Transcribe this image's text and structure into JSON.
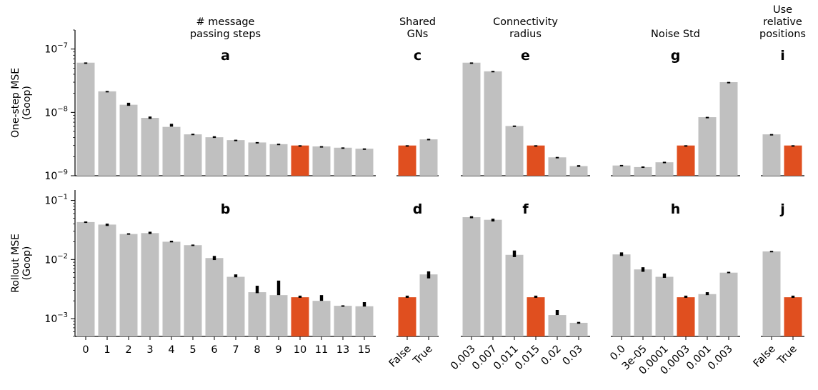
{
  "colors": {
    "bar": "#c0c0c0",
    "highlight": "#e04f1f",
    "error": "#000000"
  },
  "chart_data": {
    "type": "bar",
    "row_labels": [
      [
        "One-step MSE",
        "(Goop)"
      ],
      [
        "Rollout MSE",
        "(Goop)"
      ]
    ],
    "rows": [
      {
        "ylim": [
          1e-09,
          2e-07
        ],
        "yscale": "log",
        "ticks": [
          {
            "v": 1e-07,
            "base": "10",
            "exp": "−7"
          },
          {
            "v": 1e-08,
            "base": "10",
            "exp": "−8"
          },
          {
            "v": 1e-09,
            "base": "10",
            "exp": "−9"
          }
        ]
      },
      {
        "ylim": [
          0.0005,
          0.15
        ],
        "yscale": "log",
        "ticks": [
          {
            "v": 0.1,
            "base": "10",
            "exp": "−1"
          },
          {
            "v": 0.01,
            "base": "10",
            "exp": "−2"
          },
          {
            "v": 0.001,
            "base": "10",
            "exp": "−3"
          }
        ]
      }
    ],
    "columns": [
      {
        "title": [
          "# message",
          "passing steps"
        ],
        "rotate_ticks": false,
        "categories": [
          "0",
          "1",
          "2",
          "3",
          "4",
          "5",
          "6",
          "7",
          "8",
          "9",
          "10",
          "11",
          "13",
          "15"
        ],
        "highlight_index": 10,
        "panels": [
          {
            "letter": "a",
            "values": [
              6.1e-08,
              2.15e-08,
              1.32e-08,
              8.2e-09,
              5.9e-09,
              4.5e-09,
              4.05e-09,
              3.65e-09,
              3.35e-09,
              3.15e-09,
              3e-09,
              2.9e-09,
              2.77e-09,
              2.67e-09
            ],
            "errors": [
              [
                6.05e-08,
                6.15e-08
              ],
              [
                2.12e-08,
                2.18e-08
              ],
              [
                1.27e-08,
                1.42e-08
              ],
              [
                7.9e-09,
                8.6e-09
              ],
              [
                5.95e-09,
                6.6e-09
              ],
              [
                4.45e-09,
                4.6e-09
              ],
              [
                3.95e-09,
                4.2e-09
              ],
              [
                3.6e-09,
                3.7e-09
              ],
              [
                3.3e-09,
                3.4e-09
              ],
              [
                3.1e-09,
                3.2e-09
              ],
              [
                2.97e-09,
                3.03e-09
              ],
              [
                2.87e-09,
                2.93e-09
              ],
              [
                2.74e-09,
                2.8e-09
              ],
              [
                2.64e-09,
                2.7e-09
              ]
            ]
          },
          {
            "letter": "b",
            "values": [
              0.043,
              0.039,
              0.027,
              0.028,
              0.02,
              0.0175,
              0.0106,
              0.0051,
              0.0028,
              0.0025,
              0.0023,
              0.002,
              0.00165,
              0.00162
            ],
            "errors": [
              [
                0.042,
                0.044
              ],
              [
                0.037,
                0.0405
              ],
              [
                0.0265,
                0.0278
              ],
              [
                0.027,
                0.0295
              ],
              [
                0.0195,
                0.0208
              ],
              [
                0.0171,
                0.0179
              ],
              [
                0.0098,
                0.0115
              ],
              [
                0.005,
                0.0056
              ],
              [
                0.0027,
                0.0036
              ],
              [
                0.0025,
                0.0044
              ],
              [
                0.00225,
                0.00245
              ],
              [
                0.002,
                0.0025
              ],
              [
                0.00162,
                0.00168
              ],
              [
                0.0016,
                0.0019
              ]
            ]
          }
        ]
      },
      {
        "title": [
          "Shared",
          "GNs"
        ],
        "rotate_ticks": true,
        "categories": [
          "False",
          "True"
        ],
        "highlight_index": 0,
        "panels": [
          {
            "letter": "c",
            "values": [
              3e-09,
              3.75e-09
            ],
            "errors": [
              [
                2.97e-09,
                3.03e-09
              ],
              [
                3.7e-09,
                3.82e-09
              ]
            ]
          },
          {
            "letter": "d",
            "values": [
              0.0023,
              0.0056
            ],
            "errors": [
              [
                0.00225,
                0.00245
              ],
              [
                0.0048,
                0.0063
              ]
            ]
          }
        ]
      },
      {
        "title": [
          "Connectivity",
          "radius"
        ],
        "rotate_ticks": true,
        "categories": [
          "0.003",
          "0.007",
          "0.011",
          "0.015",
          "0.02",
          "0.03"
        ],
        "highlight_index": 3,
        "panels": [
          {
            "letter": "e",
            "values": [
              6.1e-08,
              4.45e-08,
              6.1e-09,
              3e-09,
              1.95e-09,
              1.42e-09
            ],
            "errors": [
              [
                6.05e-08,
                6.15e-08
              ],
              [
                4.4e-08,
                4.52e-08
              ],
              [
                6e-09,
                6.2e-09
              ],
              [
                2.97e-09,
                3.03e-09
              ],
              [
                1.92e-09,
                1.98e-09
              ],
              [
                1.38e-09,
                1.47e-09
              ]
            ]
          },
          {
            "letter": "f",
            "values": [
              0.052,
              0.047,
              0.012,
              0.0023,
              0.00115,
              0.00085
            ],
            "errors": [
              [
                0.05,
                0.054
              ],
              [
                0.044,
                0.049
              ],
              [
                0.011,
                0.0142
              ],
              [
                0.00225,
                0.00245
              ],
              [
                0.00115,
                0.0014
              ],
              [
                0.00082,
                0.00088
              ]
            ]
          }
        ]
      },
      {
        "title": [
          "Noise Std"
        ],
        "rotate_ticks": true,
        "categories": [
          "0.0",
          "3e-05",
          "0.0001",
          "0.0003",
          "0.001",
          "0.003"
        ],
        "highlight_index": 3,
        "panels": [
          {
            "letter": "g",
            "values": [
              1.45e-09,
              1.37e-09,
              1.63e-09,
              3e-09,
              8.4e-09,
              3e-08
            ],
            "errors": [
              [
                1.42e-09,
                1.48e-09
              ],
              [
                1.34e-09,
                1.4e-09
              ],
              [
                1.6e-09,
                1.66e-09
              ],
              [
                2.97e-09,
                3.03e-09
              ],
              [
                8.3e-09,
                8.5e-09
              ],
              [
                2.97e-08,
                3.03e-08
              ]
            ]
          },
          {
            "letter": "h",
            "values": [
              0.0122,
              0.0068,
              0.0051,
              0.0023,
              0.0026,
              0.006
            ],
            "errors": [
              [
                0.0115,
                0.0132
              ],
              [
                0.0062,
                0.0074
              ],
              [
                0.0049,
                0.0058
              ],
              [
                0.00225,
                0.00245
              ],
              [
                0.0025,
                0.0028
              ],
              [
                0.0059,
                0.0062
              ]
            ]
          }
        ]
      },
      {
        "title": [
          "Use",
          "relative",
          "positions"
        ],
        "rotate_ticks": true,
        "categories": [
          "False",
          "True"
        ],
        "highlight_index": 1,
        "panels": [
          {
            "letter": "i",
            "values": [
              4.5e-09,
              3e-09
            ],
            "errors": [
              [
                4.45e-09,
                4.55e-09
              ],
              [
                2.97e-09,
                3.03e-09
              ]
            ]
          },
          {
            "letter": "j",
            "values": [
              0.0137,
              0.0023
            ],
            "errors": [
              [
                0.0134,
                0.014
              ],
              [
                0.00225,
                0.00245
              ]
            ]
          }
        ]
      }
    ]
  }
}
